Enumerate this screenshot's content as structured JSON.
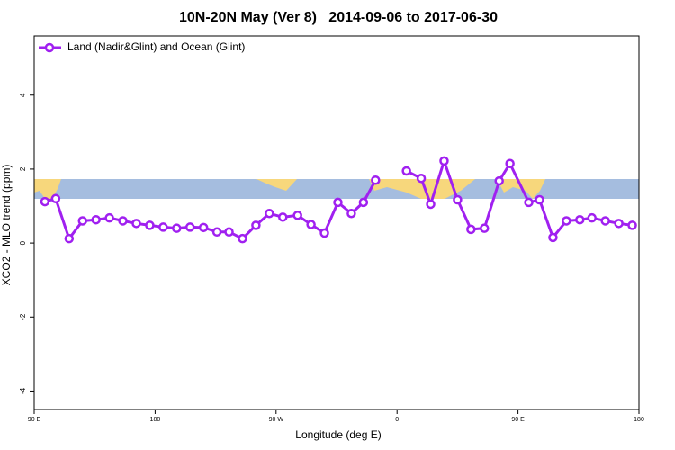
{
  "chart_data": {
    "type": "line",
    "title": "10N-20N May (Ver 8)   2014-09-06 to 2017-06-30",
    "x_label": "Longitude (deg E)",
    "y_label": "XCO2 - MLO trend (ppm)",
    "x": [
      98,
      106,
      116,
      126,
      136,
      146,
      156,
      166,
      176,
      186,
      196,
      206,
      216,
      226,
      235,
      245,
      255,
      265,
      275,
      286,
      296,
      306,
      316,
      326,
      335,
      344,
      355,
      367,
      378,
      385,
      395,
      405,
      415,
      425,
      436,
      444,
      458,
      466,
      476,
      486,
      496,
      505,
      515,
      525,
      535
    ],
    "series": [
      {
        "name": "Land (Nadir&Glint) and Ocean (Glint)",
        "color": "#a020f0",
        "values": [
          1.12,
          1.2,
          0.12,
          0.6,
          0.63,
          0.68,
          0.6,
          0.53,
          0.48,
          0.43,
          0.4,
          0.43,
          0.42,
          0.3,
          0.3,
          0.12,
          0.48,
          0.8,
          0.7,
          0.75,
          0.5,
          0.27,
          1.1,
          0.8,
          1.1,
          1.7,
          null,
          1.95,
          1.75,
          1.05,
          2.22,
          1.17,
          0.37,
          0.4,
          1.68,
          2.15,
          1.1,
          1.17,
          0.15,
          0.6,
          0.63,
          0.68,
          0.6,
          0.53,
          0.48
        ]
      }
    ],
    "xlim": [
      90,
      540
    ],
    "xticks": [
      {
        "value": 90,
        "label": "90 E"
      },
      180,
      {
        "value": 270,
        "label": "90 W"
      },
      {
        "value": 360,
        "label": "0"
      },
      {
        "value": 450,
        "label": "90 E"
      },
      180.0001
    ],
    "ylim": [
      -4.5,
      5.6
    ],
    "yticks": [
      -4,
      -2,
      0,
      2,
      4
    ],
    "legend": "top-left"
  }
}
